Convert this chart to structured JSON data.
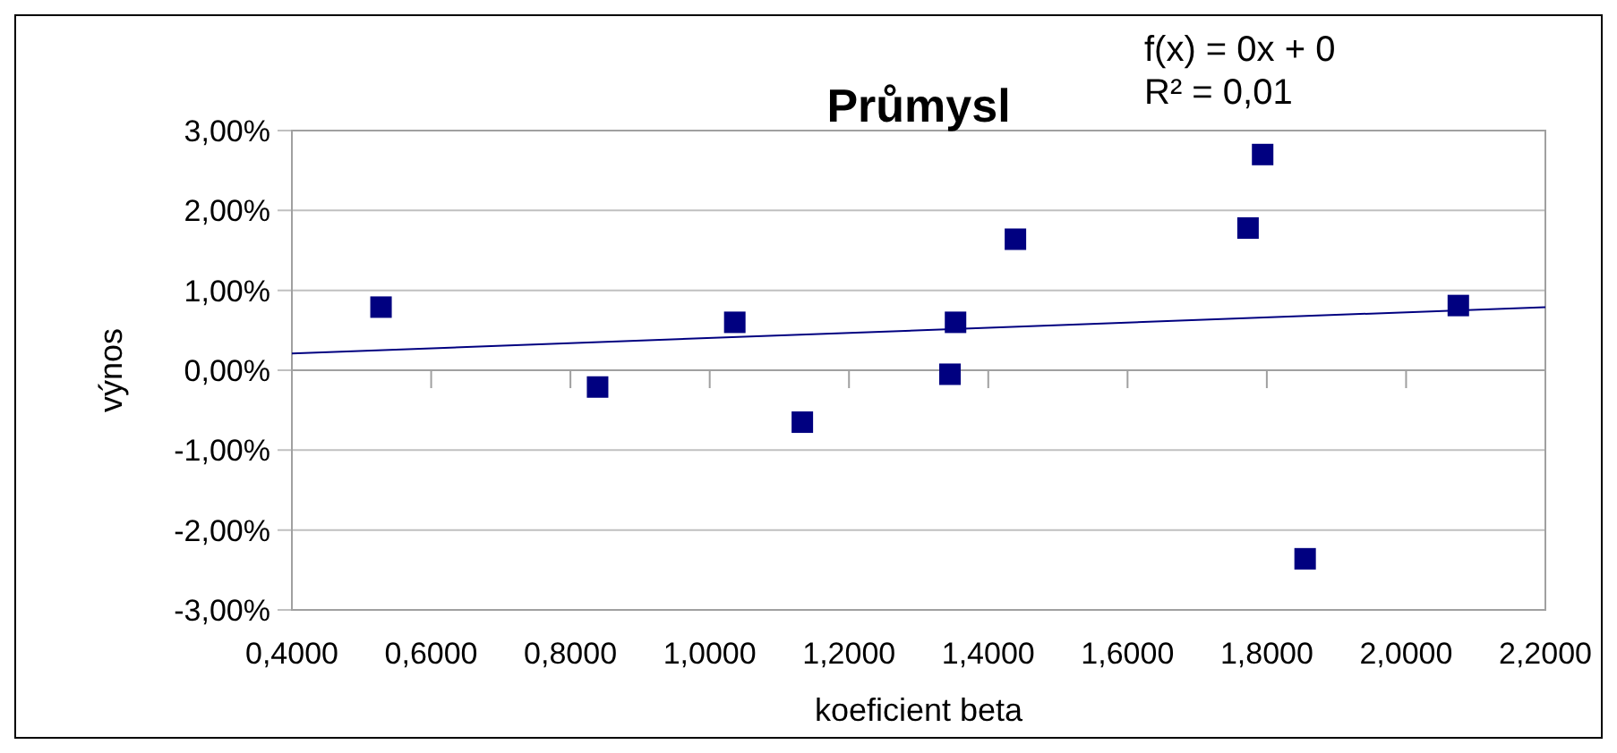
{
  "chart_data": {
    "type": "scatter",
    "title": "Průmysl",
    "xlabel": "koeficient beta",
    "ylabel": "výnos",
    "annotations": [
      "f(x) = 0x + 0",
      "R² = 0,01"
    ],
    "xlim": [
      0.4,
      2.2
    ],
    "ylim": [
      -3,
      3
    ],
    "xticks": [
      {
        "value": 0.4,
        "label": "0,4000"
      },
      {
        "value": 0.6,
        "label": "0,6000"
      },
      {
        "value": 0.8,
        "label": "0,8000"
      },
      {
        "value": 1.0,
        "label": "1,0000"
      },
      {
        "value": 1.2,
        "label": "1,2000"
      },
      {
        "value": 1.4,
        "label": "1,4000"
      },
      {
        "value": 1.6,
        "label": "1,6000"
      },
      {
        "value": 1.8,
        "label": "1,8000"
      },
      {
        "value": 2.0,
        "label": "2,0000"
      },
      {
        "value": 2.2,
        "label": "2,2000"
      }
    ],
    "yticks": [
      {
        "value": 3,
        "label": "3,00%"
      },
      {
        "value": 2,
        "label": "2,00%"
      },
      {
        "value": 1,
        "label": "1,00%"
      },
      {
        "value": 0,
        "label": "0,00%"
      },
      {
        "value": -1,
        "label": "-1,00%"
      },
      {
        "value": -2,
        "label": "-2,00%"
      },
      {
        "value": -3,
        "label": "-3,00%"
      }
    ],
    "grid": "y",
    "series": [
      {
        "color": "#000080",
        "marker": "square",
        "x": [
          0.528,
          0.839,
          1.036,
          1.133,
          1.345,
          1.353,
          1.439,
          1.773,
          1.794,
          1.855,
          2.075
        ],
        "values": [
          0.79,
          -0.21,
          0.6,
          -0.65,
          -0.05,
          0.6,
          1.64,
          1.78,
          2.7,
          -2.36,
          0.81
        ]
      },
      {
        "type": "line",
        "color": "#000080",
        "marker": "none",
        "x": [
          0.4,
          2.2
        ],
        "values": [
          0.21,
          0.79
        ]
      }
    ]
  }
}
